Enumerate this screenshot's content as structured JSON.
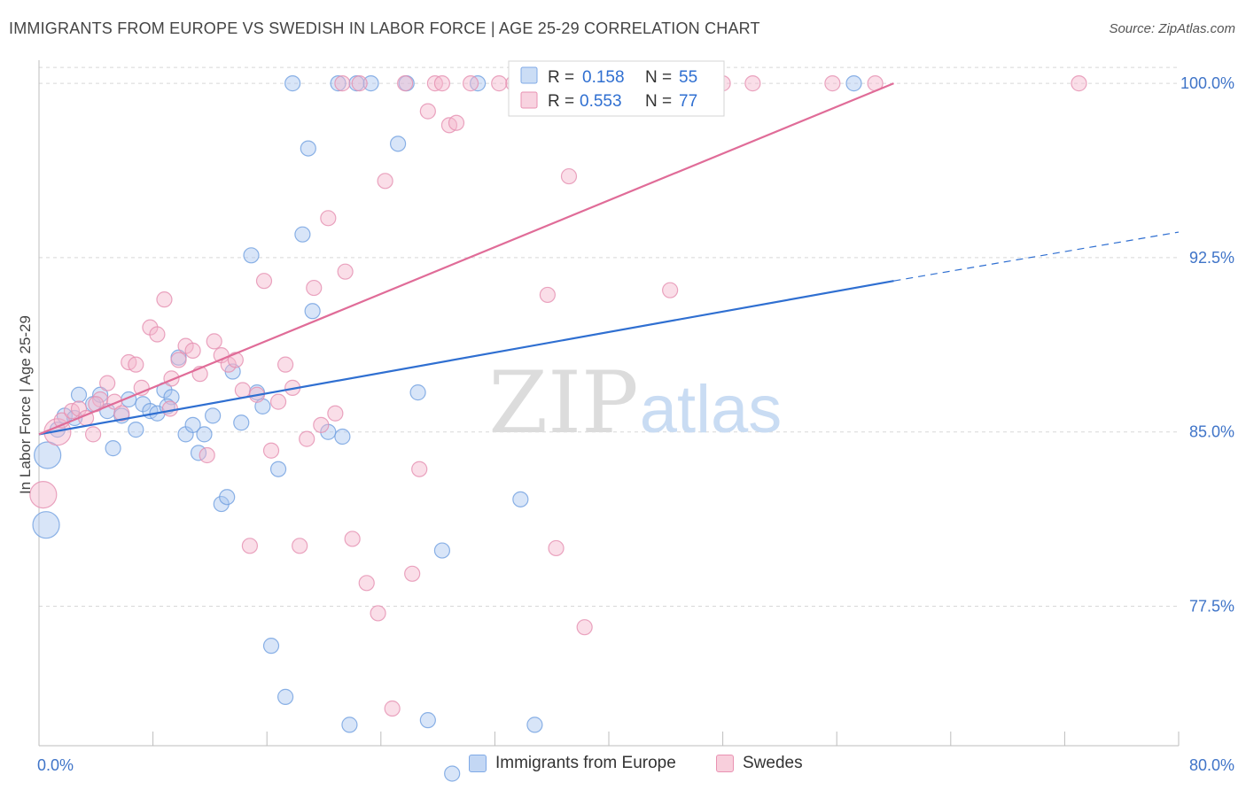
{
  "header": {
    "title": "IMMIGRANTS FROM EUROPE VS SWEDISH IN LABOR FORCE | AGE 25-29 CORRELATION CHART",
    "source": "Source: ZipAtlas.com"
  },
  "colors": {
    "blue": "#2f6fd1",
    "blue_fill": "#a9c6ef",
    "pink": "#e06c98",
    "pink_fill": "#f4b6cb",
    "grid": "#d8d8d8",
    "tick_label": "#3f74c8"
  },
  "stats_legend": {
    "rows": [
      {
        "r_label": "R =",
        "r_value": "0.158",
        "n_label": "N =",
        "n_value": "55",
        "color": "#a9c6ef"
      },
      {
        "r_label": "R =",
        "r_value": "0.553",
        "n_label": "N =",
        "n_value": "77",
        "color": "#f4b6cb"
      }
    ]
  },
  "watermark": {
    "zip": "ZIP",
    "atlas": "atlas"
  },
  "chart_data": {
    "type": "scatter",
    "title": "IMMIGRANTS FROM EUROPE VS SWEDISH IN LABOR FORCE | AGE 25-29 CORRELATION CHART",
    "xlabel": "",
    "ylabel": "In Labor Force | Age 25-29",
    "xlim": [
      0,
      80
    ],
    "ylim": [
      71.5,
      101.3
    ],
    "x_tick_labels": [
      "0.0%",
      "80.0%"
    ],
    "y_ticks": [
      77.5,
      85.0,
      92.5,
      100.0
    ],
    "y_tick_labels": [
      "77.5%",
      "85.0%",
      "92.5%",
      "100.0%"
    ],
    "grid": true,
    "legend_position": "bottom",
    "series": [
      {
        "name": "Immigrants from Europe",
        "color": "#2f6fd1",
        "points": [
          {
            "x": 0.6,
            "y": 84.0,
            "big": true
          },
          {
            "x": 0.5,
            "y": 81.0,
            "big": true
          },
          {
            "x": 1.3,
            "y": 85.1
          },
          {
            "x": 1.8,
            "y": 85.7
          },
          {
            "x": 2.5,
            "y": 85.6
          },
          {
            "x": 2.8,
            "y": 86.6
          },
          {
            "x": 3.8,
            "y": 86.2
          },
          {
            "x": 4.3,
            "y": 86.6
          },
          {
            "x": 4.8,
            "y": 85.9
          },
          {
            "x": 5.2,
            "y": 84.3
          },
          {
            "x": 5.8,
            "y": 85.7
          },
          {
            "x": 6.3,
            "y": 86.4
          },
          {
            "x": 6.8,
            "y": 85.1
          },
          {
            "x": 7.3,
            "y": 86.2
          },
          {
            "x": 7.8,
            "y": 85.9
          },
          {
            "x": 8.3,
            "y": 85.8
          },
          {
            "x": 8.8,
            "y": 86.8
          },
          {
            "x": 9.3,
            "y": 86.5
          },
          {
            "x": 9.8,
            "y": 88.2
          },
          {
            "x": 10.3,
            "y": 84.9
          },
          {
            "x": 10.8,
            "y": 85.3
          },
          {
            "x": 11.2,
            "y": 84.1
          },
          {
            "x": 11.6,
            "y": 84.9
          },
          {
            "x": 12.2,
            "y": 85.7
          },
          {
            "x": 12.8,
            "y": 81.9
          },
          {
            "x": 13.2,
            "y": 82.2
          },
          {
            "x": 13.6,
            "y": 87.6
          },
          {
            "x": 14.2,
            "y": 85.4
          },
          {
            "x": 14.9,
            "y": 92.6
          },
          {
            "x": 15.3,
            "y": 86.7
          },
          {
            "x": 15.7,
            "y": 86.1
          },
          {
            "x": 16.3,
            "y": 75.8
          },
          {
            "x": 16.8,
            "y": 83.4
          },
          {
            "x": 17.3,
            "y": 73.6
          },
          {
            "x": 17.8,
            "y": 100.0
          },
          {
            "x": 18.5,
            "y": 93.5
          },
          {
            "x": 18.9,
            "y": 97.2
          },
          {
            "x": 19.2,
            "y": 90.2
          },
          {
            "x": 20.3,
            "y": 85.0
          },
          {
            "x": 21.0,
            "y": 100.0
          },
          {
            "x": 21.3,
            "y": 84.8
          },
          {
            "x": 21.8,
            "y": 72.4
          },
          {
            "x": 22.3,
            "y": 100.0
          },
          {
            "x": 23.3,
            "y": 100.0
          },
          {
            "x": 25.2,
            "y": 97.4
          },
          {
            "x": 25.8,
            "y": 100.0
          },
          {
            "x": 26.6,
            "y": 86.7
          },
          {
            "x": 27.3,
            "y": 72.6
          },
          {
            "x": 28.3,
            "y": 79.9
          },
          {
            "x": 29.0,
            "y": 70.3
          },
          {
            "x": 30.8,
            "y": 100.0
          },
          {
            "x": 33.8,
            "y": 82.1
          },
          {
            "x": 34.8,
            "y": 72.4
          },
          {
            "x": 57.2,
            "y": 100.0
          },
          {
            "x": 9.0,
            "y": 86.1
          }
        ],
        "trend": {
          "x0": 0,
          "y0": 84.9,
          "x1": 60,
          "y1": 91.5,
          "dash_to_x": 80,
          "dash_to_y": 93.6
        }
      },
      {
        "name": "Swedes",
        "color": "#e06c98",
        "points": [
          {
            "x": 0.3,
            "y": 82.3,
            "big": true
          },
          {
            "x": 1.3,
            "y": 85.0,
            "big": true
          },
          {
            "x": 1.6,
            "y": 85.5
          },
          {
            "x": 2.3,
            "y": 85.9
          },
          {
            "x": 2.8,
            "y": 86.0
          },
          {
            "x": 3.3,
            "y": 85.6
          },
          {
            "x": 3.8,
            "y": 84.9
          },
          {
            "x": 4.3,
            "y": 86.4
          },
          {
            "x": 4.8,
            "y": 87.1
          },
          {
            "x": 5.3,
            "y": 86.3
          },
          {
            "x": 5.8,
            "y": 85.8
          },
          {
            "x": 6.3,
            "y": 88.0
          },
          {
            "x": 6.8,
            "y": 87.9
          },
          {
            "x": 7.2,
            "y": 86.9
          },
          {
            "x": 7.8,
            "y": 89.5
          },
          {
            "x": 8.3,
            "y": 89.2
          },
          {
            "x": 8.8,
            "y": 90.7
          },
          {
            "x": 9.3,
            "y": 87.3
          },
          {
            "x": 9.8,
            "y": 88.1
          },
          {
            "x": 10.3,
            "y": 88.7
          },
          {
            "x": 10.8,
            "y": 88.5
          },
          {
            "x": 11.3,
            "y": 87.5
          },
          {
            "x": 11.8,
            "y": 84.0
          },
          {
            "x": 12.3,
            "y": 88.9
          },
          {
            "x": 12.8,
            "y": 88.3
          },
          {
            "x": 13.3,
            "y": 87.9
          },
          {
            "x": 13.8,
            "y": 88.1
          },
          {
            "x": 14.3,
            "y": 86.8
          },
          {
            "x": 14.8,
            "y": 80.1
          },
          {
            "x": 15.3,
            "y": 86.6
          },
          {
            "x": 15.8,
            "y": 91.5
          },
          {
            "x": 16.3,
            "y": 84.2
          },
          {
            "x": 16.8,
            "y": 86.3
          },
          {
            "x": 17.3,
            "y": 87.9
          },
          {
            "x": 17.8,
            "y": 86.9
          },
          {
            "x": 18.3,
            "y": 80.1
          },
          {
            "x": 18.8,
            "y": 84.7
          },
          {
            "x": 19.3,
            "y": 91.2
          },
          {
            "x": 19.8,
            "y": 85.3
          },
          {
            "x": 20.3,
            "y": 94.2
          },
          {
            "x": 20.8,
            "y": 85.8
          },
          {
            "x": 21.3,
            "y": 100.0
          },
          {
            "x": 21.5,
            "y": 91.9
          },
          {
            "x": 22.0,
            "y": 80.4
          },
          {
            "x": 22.5,
            "y": 100.0
          },
          {
            "x": 23.0,
            "y": 78.5
          },
          {
            "x": 23.8,
            "y": 77.2
          },
          {
            "x": 24.3,
            "y": 95.8
          },
          {
            "x": 24.8,
            "y": 73.1
          },
          {
            "x": 25.7,
            "y": 100.0
          },
          {
            "x": 26.2,
            "y": 78.9
          },
          {
            "x": 26.7,
            "y": 83.4
          },
          {
            "x": 27.3,
            "y": 98.8
          },
          {
            "x": 27.8,
            "y": 100.0
          },
          {
            "x": 28.3,
            "y": 100.0
          },
          {
            "x": 28.8,
            "y": 98.2
          },
          {
            "x": 29.3,
            "y": 98.3
          },
          {
            "x": 30.3,
            "y": 100.0
          },
          {
            "x": 32.3,
            "y": 100.0
          },
          {
            "x": 33.3,
            "y": 100.0
          },
          {
            "x": 34.8,
            "y": 100.0
          },
          {
            "x": 35.7,
            "y": 90.9
          },
          {
            "x": 36.3,
            "y": 80.0
          },
          {
            "x": 37.2,
            "y": 96.0
          },
          {
            "x": 38.3,
            "y": 76.6
          },
          {
            "x": 39.3,
            "y": 100.0
          },
          {
            "x": 41.5,
            "y": 100.0
          },
          {
            "x": 42.8,
            "y": 100.0
          },
          {
            "x": 44.3,
            "y": 91.1
          },
          {
            "x": 45.2,
            "y": 100.0
          },
          {
            "x": 48.0,
            "y": 100.0
          },
          {
            "x": 50.1,
            "y": 100.0
          },
          {
            "x": 55.7,
            "y": 100.0
          },
          {
            "x": 58.7,
            "y": 100.0
          },
          {
            "x": 73.0,
            "y": 100.0
          },
          {
            "x": 9.2,
            "y": 86.0
          },
          {
            "x": 4.0,
            "y": 86.2
          }
        ],
        "trend": {
          "x0": 0,
          "y0": 84.9,
          "x1": 60,
          "y1": 100.0
        }
      }
    ]
  }
}
